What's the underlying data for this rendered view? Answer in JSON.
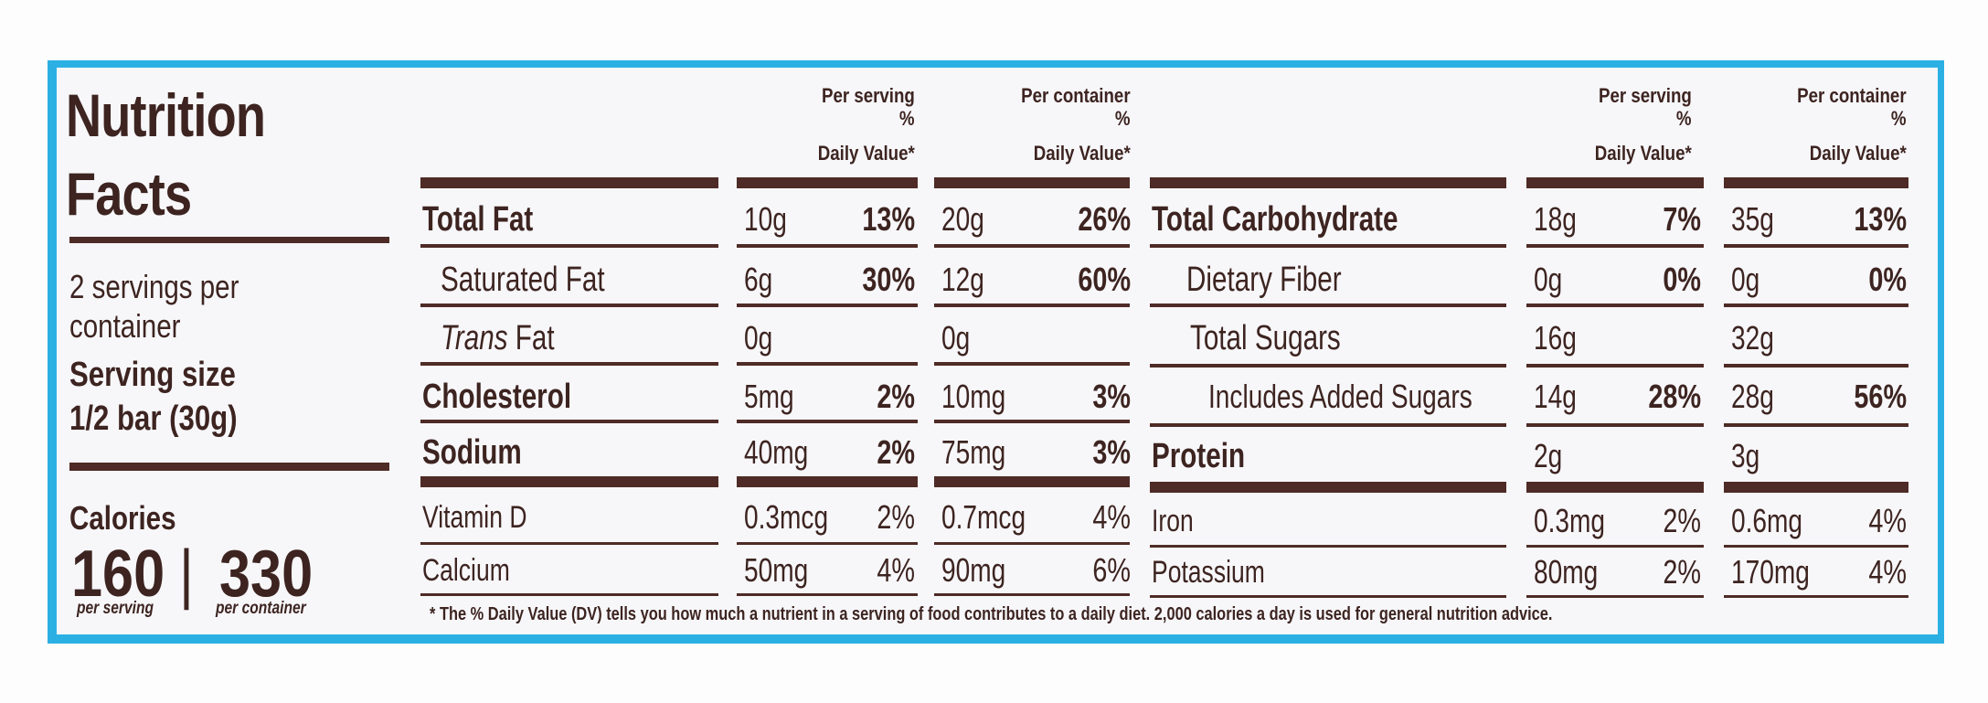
{
  "label": {
    "title_line1": "Nutrition",
    "title_line2": "Facts",
    "servings_line1": "2 servings per",
    "servings_line2": "container",
    "serving_size_label": "Serving size",
    "serving_size_value": "1/2 bar (30g)",
    "calories_label": "Calories",
    "calories_per_serving": "160",
    "calories_divider": "|",
    "calories_per_container": "330",
    "per_serving_caption": "per serving",
    "per_container_caption": "per container",
    "footnote": "* The % Daily Value (DV) tells you how much a nutrient in a serving of food contributes to a daily diet. 2,000 calories a day is used for general nutrition advice."
  },
  "headers": {
    "per_serving_line1": "Per serving",
    "per_container_line1": "Per container",
    "percent": "%",
    "daily_value": "Daily Value*"
  },
  "left_table": [
    {
      "name": "Total Fat",
      "serving": "10g",
      "serving_dv": "13%",
      "container": "20g",
      "container_dv": "26%"
    },
    {
      "name": "Saturated Fat",
      "serving": "6g",
      "serving_dv": "30%",
      "container": "12g",
      "container_dv": "60%"
    },
    {
      "name_italic": "Trans",
      "name": " Fat",
      "serving": "0g",
      "serving_dv": "",
      "container": "0g",
      "container_dv": ""
    },
    {
      "name": "Cholesterol",
      "serving": "5mg",
      "serving_dv": "2%",
      "container": "10mg",
      "container_dv": "3%"
    },
    {
      "name": "Sodium",
      "serving": "40mg",
      "serving_dv": "2%",
      "container": "75mg",
      "container_dv": "3%"
    },
    {
      "name": "Vitamin D",
      "serving": "0.3mcg",
      "serving_dv": "2%",
      "container": "0.7mcg",
      "container_dv": "4%"
    },
    {
      "name": "Calcium",
      "serving": "50mg",
      "serving_dv": "4%",
      "container": "90mg",
      "container_dv": "6%"
    }
  ],
  "right_table": [
    {
      "name": "Total Carbohydrate",
      "serving": "18g",
      "serving_dv": "7%",
      "container": "35g",
      "container_dv": "13%"
    },
    {
      "name": "Dietary Fiber",
      "serving": "0g",
      "serving_dv": "0%",
      "container": "0g",
      "container_dv": "0%"
    },
    {
      "name": "Total Sugars",
      "serving": "16g",
      "serving_dv": "",
      "container": "32g",
      "container_dv": ""
    },
    {
      "name": "Includes Added Sugars",
      "serving": "14g",
      "serving_dv": "28%",
      "container": "28g",
      "container_dv": "56%"
    },
    {
      "name": "Protein",
      "serving": "2g",
      "serving_dv": "",
      "container": "3g",
      "container_dv": ""
    },
    {
      "name": "Iron",
      "serving": "0.3mg",
      "serving_dv": "2%",
      "container": "0.6mg",
      "container_dv": "4%"
    },
    {
      "name": "Potassium",
      "serving": "80mg",
      "serving_dv": "2%",
      "container": "170mg",
      "container_dv": "4%"
    }
  ],
  "colors": {
    "ink": "#4e2b26",
    "background": "#f7f7fa",
    "edge": "#2cb0e3"
  }
}
